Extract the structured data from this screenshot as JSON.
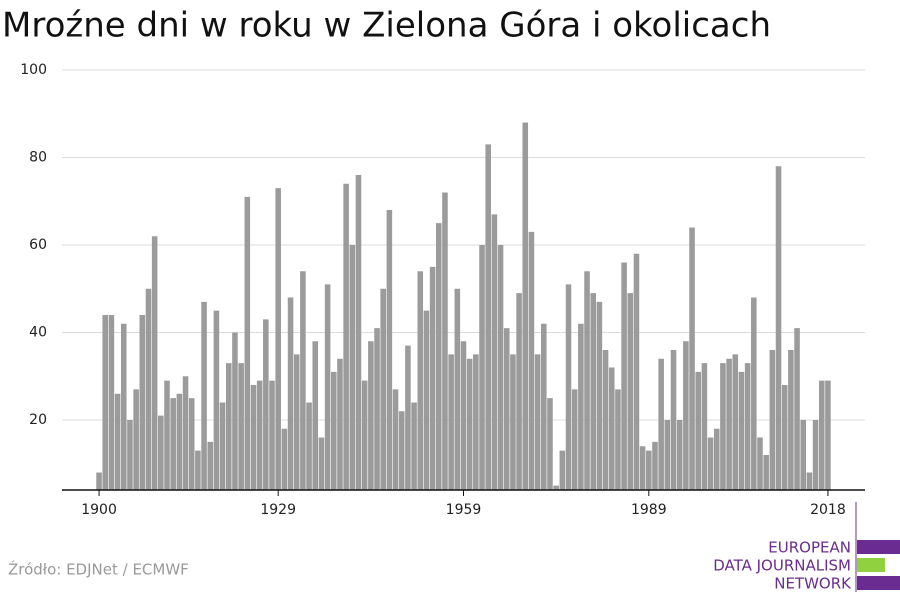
{
  "chart_data": {
    "type": "bar",
    "title": "Mroźne dni w roku w Zielona Góra i okolicach",
    "source": "Źródło: EDJNet / ECMWF",
    "logo": [
      "EUROPEAN",
      "DATA JOURNALISM",
      "NETWORK"
    ],
    "color": "#9b9b9b",
    "grid": true,
    "x": [
      1900,
      1901,
      1902,
      1903,
      1904,
      1905,
      1906,
      1907,
      1908,
      1909,
      1910,
      1911,
      1912,
      1913,
      1914,
      1915,
      1916,
      1917,
      1918,
      1919,
      1920,
      1921,
      1922,
      1923,
      1924,
      1925,
      1926,
      1927,
      1928,
      1929,
      1930,
      1931,
      1932,
      1933,
      1934,
      1935,
      1936,
      1937,
      1938,
      1939,
      1940,
      1941,
      1942,
      1943,
      1944,
      1945,
      1946,
      1947,
      1948,
      1949,
      1950,
      1951,
      1952,
      1953,
      1954,
      1955,
      1956,
      1957,
      1958,
      1959,
      1960,
      1961,
      1962,
      1963,
      1964,
      1965,
      1966,
      1967,
      1968,
      1969,
      1970,
      1971,
      1972,
      1973,
      1974,
      1975,
      1976,
      1977,
      1978,
      1979,
      1980,
      1981,
      1982,
      1983,
      1984,
      1985,
      1986,
      1987,
      1988,
      1989,
      1990,
      1991,
      1992,
      1993,
      1994,
      1995,
      1996,
      1997,
      1998,
      1999,
      2000,
      2001,
      2002,
      2003,
      2004,
      2005,
      2006,
      2007,
      2008,
      2009,
      2010,
      2011,
      2012,
      2013,
      2014,
      2015,
      2016,
      2017,
      2018
    ],
    "values": [
      8,
      44,
      44,
      26,
      42,
      20,
      27,
      44,
      50,
      62,
      21,
      29,
      25,
      26,
      30,
      25,
      13,
      47,
      15,
      45,
      24,
      33,
      40,
      33,
      71,
      28,
      29,
      43,
      29,
      73,
      18,
      48,
      35,
      54,
      24,
      38,
      16,
      51,
      31,
      34,
      74,
      60,
      76,
      29,
      38,
      41,
      50,
      68,
      27,
      22,
      37,
      24,
      54,
      45,
      55,
      65,
      72,
      35,
      50,
      38,
      34,
      35,
      60,
      83,
      67,
      60,
      41,
      35,
      49,
      88,
      63,
      35,
      42,
      25,
      5,
      13,
      51,
      27,
      42,
      54,
      49,
      47,
      36,
      32,
      27,
      56,
      49,
      58,
      14,
      13,
      15,
      34,
      20,
      36,
      20,
      38,
      64,
      31,
      33,
      16,
      18,
      33,
      34,
      35,
      31,
      33,
      48,
      16,
      12,
      36,
      78,
      28,
      36,
      41,
      20,
      8,
      20,
      29,
      29
    ],
    "xlim": [
      1894,
      2024
    ],
    "xticks": [
      1900,
      1929,
      1959,
      1989,
      2018
    ],
    "ylim": [
      4,
      100
    ],
    "yticks": [
      20,
      40,
      60,
      80,
      100
    ]
  }
}
